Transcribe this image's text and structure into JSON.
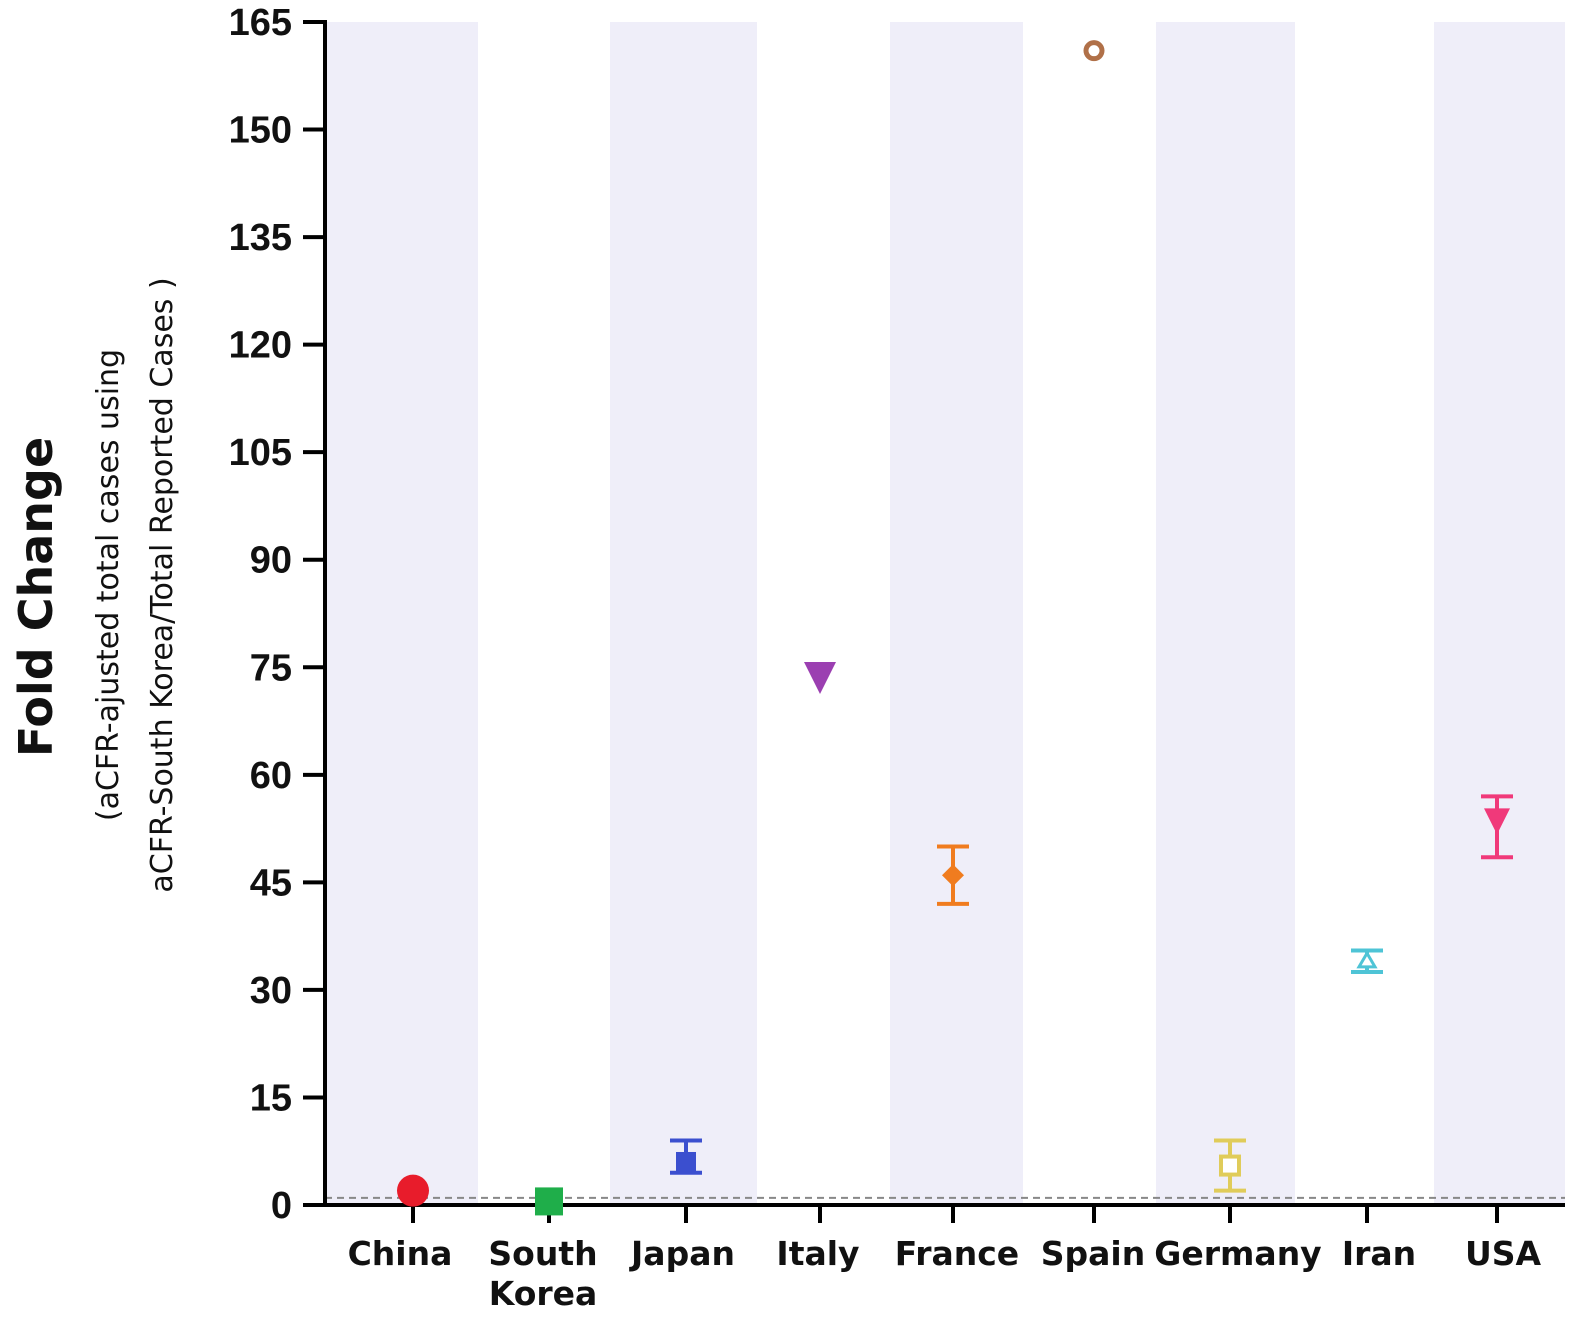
{
  "chart_data": {
    "type": "scatter",
    "categories": [
      "China",
      "South Korea",
      "Japan",
      "Italy",
      "France",
      "Spain",
      "Germany",
      "Iran",
      "USA"
    ],
    "category_labels": [
      [
        "China"
      ],
      [
        "South",
        "Korea"
      ],
      [
        "Japan"
      ],
      [
        "Italy"
      ],
      [
        "France"
      ],
      [
        "Spain"
      ],
      [
        "Germany"
      ],
      [
        "Iran"
      ],
      [
        "USA"
      ]
    ],
    "values": [
      2,
      0.5,
      6,
      73.5,
      46,
      161,
      5.5,
      34,
      53.5
    ],
    "error_low": [
      null,
      null,
      4.5,
      null,
      42,
      null,
      2,
      32.5,
      48.5
    ],
    "error_high": [
      null,
      null,
      9,
      null,
      50,
      null,
      9,
      35.5,
      57
    ],
    "markers": [
      "circle",
      "square",
      "square",
      "triangle-down",
      "diamond",
      "circle-open",
      "square-open",
      "triangle-up-open",
      "triangle-down"
    ],
    "colors": [
      "#e81c2b",
      "#1fae4a",
      "#3b4fcf",
      "#9b3fb1",
      "#f07c1f",
      "#b07048",
      "#e0cc5a",
      "#4ec4d6",
      "#f0397a"
    ],
    "band_colors": [
      "#efeef9",
      "#ffffff"
    ],
    "reference_line": 1,
    "ylabel": "Fold Change",
    "ylabel_sub": [
      "(aCFR-ajusted total cases using",
      "aCFR-South Korea/Total Reported Cases )"
    ],
    "ylim": [
      0,
      165
    ],
    "yticks": [
      0,
      15,
      30,
      45,
      60,
      75,
      90,
      105,
      120,
      135,
      150,
      165
    ],
    "grid": false
  }
}
